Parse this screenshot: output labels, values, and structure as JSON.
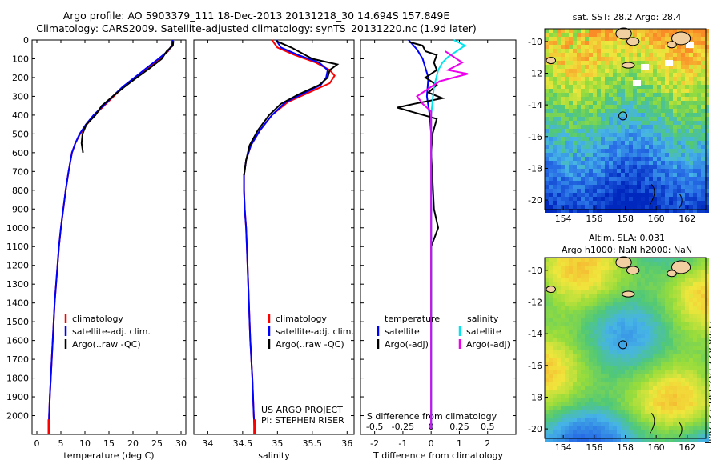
{
  "header": {
    "line1": "Argo profile: AO 5903379_111 18-Dec-2013 20131218_30 14.694S 157.849E",
    "line2": "Climatology: CARS2009. Satellite-adjusted climatology: synTS_20131220.nc (1.9d later)"
  },
  "maps": {
    "sst_title": "sat. SST: 28.2 Argo: 28.4",
    "sla_title1": "Altim. SLA: 0.031",
    "sla_title2": "Argo h1000: NaN h2000: NaN",
    "stamp": "IMOS 27-Dec-2013 20:00:17",
    "lon_ticks": [
      "154",
      "156",
      "158",
      "160",
      "162"
    ],
    "lat_ticks": [
      "-10",
      "-12",
      "-14",
      "-16",
      "-18",
      "-20"
    ]
  },
  "colors": {
    "climatology": "#ff0000",
    "satellite": "#0000ff",
    "argo": "#000000",
    "sat_salinity": "#00e5ee",
    "argo_salinity": "#ee00ee"
  },
  "chart_data": [
    {
      "type": "line",
      "panel": "temperature",
      "xlabel": "temperature (deg C)",
      "ylabel": "",
      "xlim": [
        -1,
        31
      ],
      "ylim": [
        2100,
        0
      ],
      "xticks": [
        0,
        5,
        10,
        15,
        20,
        25,
        30
      ],
      "yticks": [
        0,
        100,
        200,
        300,
        400,
        500,
        600,
        700,
        800,
        900,
        1000,
        1100,
        1200,
        1300,
        1400,
        1500,
        1600,
        1700,
        1800,
        1900,
        2000
      ],
      "legend": [
        "climatology",
        "satellite-adj. clim.",
        "Argo(..raw -QC)"
      ],
      "series": [
        {
          "name": "climatology",
          "color": "#ff0000",
          "points": [
            [
              28.2,
              0
            ],
            [
              28.0,
              30
            ],
            [
              27.3,
              60
            ],
            [
              25.5,
              100
            ],
            [
              23,
              150
            ],
            [
              20.5,
              200
            ],
            [
              18,
              250
            ],
            [
              16,
              300
            ],
            [
              14,
              350
            ],
            [
              12,
              400
            ],
            [
              10.4,
              450
            ],
            [
              9,
              500
            ],
            [
              8,
              550
            ],
            [
              7.3,
              600
            ],
            [
              6.6,
              700
            ],
            [
              6,
              800
            ],
            [
              5.5,
              900
            ],
            [
              5,
              1000
            ],
            [
              4.6,
              1100
            ],
            [
              4.3,
              1200
            ],
            [
              4,
              1300
            ],
            [
              3.7,
              1400
            ],
            [
              3.5,
              1500
            ],
            [
              3.3,
              1600
            ],
            [
              3.1,
              1700
            ],
            [
              2.9,
              1800
            ],
            [
              2.7,
              1900
            ],
            [
              2.55,
              2000
            ],
            [
              2.5,
              2070
            ]
          ]
        },
        {
          "name": "satellite-adj. clim.",
          "color": "#0000ff",
          "points": [
            [
              28.3,
              0
            ],
            [
              28.1,
              30
            ],
            [
              27.2,
              60
            ],
            [
              25.3,
              100
            ],
            [
              22.8,
              150
            ],
            [
              20.3,
              200
            ],
            [
              17.8,
              250
            ],
            [
              15.8,
              300
            ],
            [
              13.8,
              350
            ],
            [
              11.8,
              400
            ],
            [
              10.2,
              450
            ],
            [
              8.9,
              500
            ],
            [
              8,
              550
            ],
            [
              7.3,
              600
            ],
            [
              6.6,
              700
            ],
            [
              6,
              800
            ],
            [
              5.5,
              900
            ],
            [
              5,
              1000
            ],
            [
              4.6,
              1100
            ],
            [
              4.3,
              1200
            ],
            [
              4,
              1300
            ],
            [
              3.7,
              1400
            ],
            [
              3.5,
              1500
            ],
            [
              3.3,
              1600
            ],
            [
              3.1,
              1700
            ],
            [
              2.9,
              1800
            ],
            [
              2.7,
              1900
            ],
            [
              2.55,
              2000
            ],
            [
              2.5,
              2070
            ]
          ]
        },
        {
          "name": "Argo(..raw -QC)",
          "color": "#000000",
          "points": [
            [
              28.4,
              5
            ],
            [
              28.3,
              30
            ],
            [
              27,
              60
            ],
            [
              26,
              100
            ],
            [
              23.5,
              150
            ],
            [
              20.8,
              200
            ],
            [
              18.2,
              250
            ],
            [
              15.8,
              300
            ],
            [
              13.5,
              350
            ],
            [
              12.2,
              400
            ],
            [
              10.3,
              450
            ],
            [
              9.5,
              500
            ],
            [
              9.3,
              550
            ],
            [
              9.6,
              600
            ]
          ]
        }
      ]
    },
    {
      "type": "line",
      "panel": "salinity",
      "xlabel": "salinity",
      "ylabel": "",
      "xlim": [
        33.8,
        36.1
      ],
      "ylim": [
        2100,
        0
      ],
      "xticks": [
        34,
        34.5,
        35,
        35.5,
        36
      ],
      "legend": [
        "climatology",
        "satellite-adj. clim.",
        "Argo(..raw -QC)"
      ],
      "annotation": [
        "US ARGO PROJECT",
        "PI: STEPHEN RISER"
      ],
      "series": [
        {
          "name": "climatology",
          "color": "#ff0000",
          "points": [
            [
              34.92,
              0
            ],
            [
              35.0,
              40
            ],
            [
              35.25,
              80
            ],
            [
              35.55,
              120
            ],
            [
              35.75,
              160
            ],
            [
              35.82,
              190
            ],
            [
              35.75,
              230
            ],
            [
              35.45,
              280
            ],
            [
              35.15,
              330
            ],
            [
              34.92,
              400
            ],
            [
              34.75,
              480
            ],
            [
              34.62,
              560
            ],
            [
              34.55,
              640
            ],
            [
              34.52,
              720
            ],
            [
              34.52,
              800
            ],
            [
              34.53,
              900
            ],
            [
              34.55,
              1000
            ],
            [
              34.57,
              1200
            ],
            [
              34.59,
              1400
            ],
            [
              34.61,
              1600
            ],
            [
              34.64,
              1800
            ],
            [
              34.66,
              2000
            ],
            [
              34.67,
              2070
            ]
          ]
        },
        {
          "name": "satellite-adj. clim.",
          "color": "#0000ff",
          "points": [
            [
              34.98,
              0
            ],
            [
              35.05,
              40
            ],
            [
              35.3,
              80
            ],
            [
              35.6,
              120
            ],
            [
              35.72,
              160
            ],
            [
              35.7,
              200
            ],
            [
              35.62,
              240
            ],
            [
              35.4,
              280
            ],
            [
              35.12,
              330
            ],
            [
              34.92,
              400
            ],
            [
              34.75,
              480
            ],
            [
              34.62,
              560
            ],
            [
              34.55,
              640
            ],
            [
              34.52,
              720
            ],
            [
              34.52,
              800
            ],
            [
              34.53,
              900
            ],
            [
              34.55,
              1000
            ],
            [
              34.57,
              1200
            ],
            [
              34.59,
              1400
            ],
            [
              34.61,
              1600
            ],
            [
              34.64,
              1800
            ],
            [
              34.66,
              2000
            ],
            [
              34.67,
              2070
            ]
          ]
        },
        {
          "name": "Argo(..raw -QC)",
          "color": "#000000",
          "points": [
            [
              34.98,
              5
            ],
            [
              35.2,
              40
            ],
            [
              35.5,
              100
            ],
            [
              35.86,
              130
            ],
            [
              35.75,
              160
            ],
            [
              35.72,
              200
            ],
            [
              35.6,
              240
            ],
            [
              35.3,
              290
            ],
            [
              35.05,
              340
            ],
            [
              34.88,
              400
            ],
            [
              34.72,
              480
            ],
            [
              34.6,
              560
            ],
            [
              34.55,
              640
            ],
            [
              34.52,
              720
            ]
          ]
        }
      ]
    },
    {
      "type": "line",
      "panel": "difference",
      "xlabel": "T difference from climatology",
      "xlabel2": "S difference from climatology",
      "xlim": [
        -2.5,
        3.0
      ],
      "ylim": [
        2100,
        0
      ],
      "xticks": [
        -2,
        -1,
        0,
        1,
        2
      ],
      "xticks2": [
        -0.5,
        -0.25,
        0,
        0.25,
        0.5
      ],
      "legend_temperature_header": "temperature",
      "legend_salinity_header": "salinity",
      "legend": [
        "satellite",
        "Argo(-adj)",
        "satellite",
        "Argo(-adj)"
      ],
      "series": [
        {
          "name": "satellite",
          "color": "#0000ff",
          "points": [
            [
              -0.8,
              0
            ],
            [
              -0.5,
              50
            ],
            [
              -0.3,
              100
            ],
            [
              -0.1,
              200
            ],
            [
              -0.15,
              300
            ],
            [
              -0.05,
              400
            ],
            [
              0,
              500
            ],
            [
              0,
              2070
            ]
          ]
        },
        {
          "name": "Argo(-adj)",
          "color": "#000000",
          "points": [
            [
              -0.8,
              10
            ],
            [
              -0.3,
              30
            ],
            [
              -0.2,
              60
            ],
            [
              0.2,
              80
            ],
            [
              0.1,
              120
            ],
            [
              0.2,
              160
            ],
            [
              -0.2,
              200
            ],
            [
              0.2,
              240
            ],
            [
              -0.1,
              280
            ],
            [
              0.4,
              310
            ],
            [
              -0.6,
              340
            ],
            [
              -1.2,
              360
            ],
            [
              -0.5,
              390
            ],
            [
              0.2,
              420
            ],
            [
              0.05,
              500
            ],
            [
              0,
              600
            ],
            [
              0.1,
              900
            ],
            [
              0.25,
              1000
            ],
            [
              0,
              1100
            ],
            [
              0,
              1500
            ]
          ]
        },
        {
          "name": "satellite",
          "color": "#00e5ee",
          "points": [
            [
              0.8,
              0
            ],
            [
              1.2,
              30
            ],
            [
              0.9,
              60
            ],
            [
              0.6,
              90
            ],
            [
              0.4,
              120
            ],
            [
              0.25,
              160
            ],
            [
              0.1,
              250
            ],
            [
              0,
              400
            ],
            [
              0,
              2070
            ]
          ]
        },
        {
          "name": "Argo(-adj)",
          "color": "#ee00ee",
          "points": [
            [
              0.5,
              60
            ],
            [
              1.1,
              120
            ],
            [
              0.6,
              160
            ],
            [
              1.3,
              180
            ],
            [
              0.3,
              220
            ],
            [
              -0.5,
              300
            ],
            [
              -0.3,
              340
            ],
            [
              0,
              380
            ],
            [
              0,
              2070
            ]
          ]
        }
      ]
    }
  ]
}
